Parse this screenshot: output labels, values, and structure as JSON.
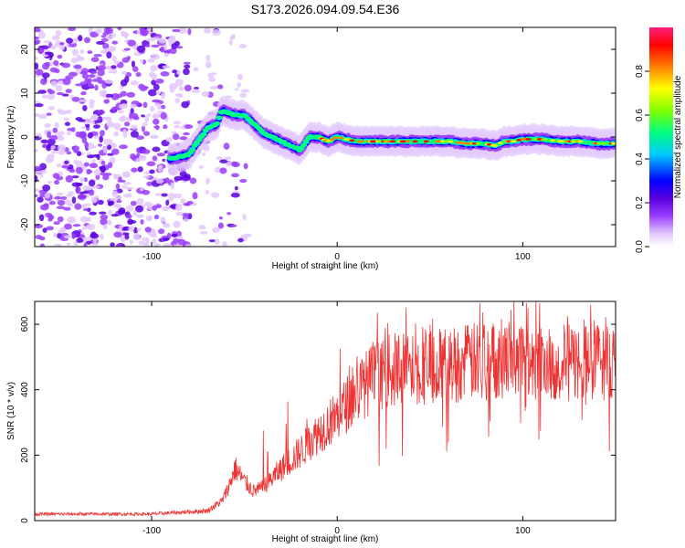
{
  "figure_title": "S173.2026.094.09.54.E36",
  "chart_data": [
    {
      "type": "heatmap",
      "title": "S173.2026.094.09.54.E36",
      "xlabel": "Height of straight line (km)",
      "ylabel": "Frequency (Hz)",
      "xlim": [
        -163,
        150
      ],
      "ylim": [
        -25,
        25
      ],
      "xticks": [
        -100,
        0,
        100
      ],
      "xtick_labels": [
        "-100",
        "0",
        "100"
      ],
      "yticks": [
        20,
        10,
        0,
        -10,
        -20
      ],
      "ytick_labels": [
        "20",
        "10",
        "0",
        "-10",
        "-20"
      ],
      "colorbar": {
        "label": "Normalized spectral amplitude",
        "range": [
          0,
          1
        ],
        "ticks": [
          0.0,
          0.2,
          0.4,
          0.6,
          0.8
        ],
        "tick_labels": [
          "0.0",
          "0.2",
          "0.4",
          "0.6",
          "0.8"
        ],
        "colors": [
          "#ffffff",
          "#e3c8ff",
          "#9a3dff",
          "#5a00e0",
          "#0000ff",
          "#00c8ff",
          "#00ff80",
          "#80ff00",
          "#ffff00",
          "#ff8000",
          "#ff0000",
          "#ff2080"
        ]
      },
      "ridge": {
        "x": [
          -90,
          -80,
          -75,
          -70,
          -65,
          -62,
          -55,
          -50,
          -45,
          -40,
          -35,
          -30,
          -25,
          -20,
          -15,
          -10,
          -5,
          0,
          10,
          20,
          40,
          60,
          70,
          80,
          85,
          90,
          95,
          100,
          110,
          120,
          130,
          140,
          150
        ],
        "frequency_hz": [
          -5,
          -4,
          -1,
          2,
          3,
          6,
          5,
          5,
          3,
          1,
          0,
          -1,
          -2,
          -3,
          0,
          0,
          -1,
          0,
          -1,
          -1,
          -1,
          -1,
          -1.5,
          -1.5,
          -2,
          -1,
          -1,
          -0.5,
          -0.5,
          -1,
          -1,
          -1.5,
          -1.5
        ]
      }
    },
    {
      "type": "line",
      "xlabel": "Height of straight line (km)",
      "ylabel": "SNR (10 * v/v)",
      "xlim": [
        -163,
        150
      ],
      "ylim": [
        0,
        670
      ],
      "xticks": [
        -100,
        0,
        100
      ],
      "xtick_labels": [
        "-100",
        "0",
        "100"
      ],
      "yticks": [
        0,
        200,
        400,
        600
      ],
      "ytick_labels": [
        "0",
        "200",
        "400",
        "600"
      ],
      "color": "#ee3333",
      "baseline_envelope": {
        "x": [
          -163,
          -100,
          -70,
          -62,
          -58,
          -55,
          -50,
          -45,
          -40,
          -30,
          -20,
          -10,
          0,
          10,
          20,
          30,
          50,
          80,
          100,
          120,
          150
        ],
        "snr": [
          20,
          20,
          30,
          60,
          110,
          160,
          120,
          90,
          100,
          160,
          210,
          270,
          320,
          390,
          440,
          460,
          470,
          490,
          500,
          480,
          490
        ]
      }
    }
  ]
}
